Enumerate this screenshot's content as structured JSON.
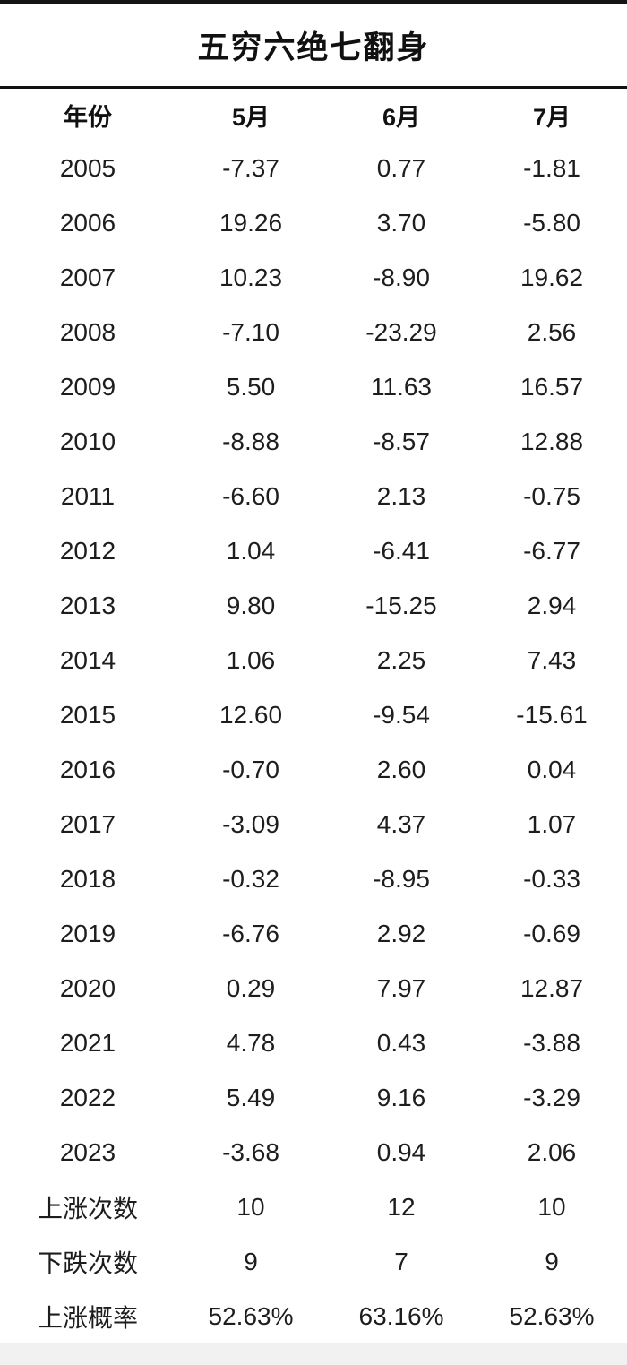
{
  "chart_data": {
    "type": "table",
    "title": "五穷六绝七翻身",
    "columns": [
      "年份",
      "5月",
      "6月",
      "7月"
    ],
    "rows": [
      [
        "2005",
        "-7.37",
        "0.77",
        "-1.81"
      ],
      [
        "2006",
        "19.26",
        "3.70",
        "-5.80"
      ],
      [
        "2007",
        "10.23",
        "-8.90",
        "19.62"
      ],
      [
        "2008",
        "-7.10",
        "-23.29",
        "2.56"
      ],
      [
        "2009",
        "5.50",
        "11.63",
        "16.57"
      ],
      [
        "2010",
        "-8.88",
        "-8.57",
        "12.88"
      ],
      [
        "2011",
        "-6.60",
        "2.13",
        "-0.75"
      ],
      [
        "2012",
        "1.04",
        "-6.41",
        "-6.77"
      ],
      [
        "2013",
        "9.80",
        "-15.25",
        "2.94"
      ],
      [
        "2014",
        "1.06",
        "2.25",
        "7.43"
      ],
      [
        "2015",
        "12.60",
        "-9.54",
        "-15.61"
      ],
      [
        "2016",
        "-0.70",
        "2.60",
        "0.04"
      ],
      [
        "2017",
        "-3.09",
        "4.37",
        "1.07"
      ],
      [
        "2018",
        "-0.32",
        "-8.95",
        "-0.33"
      ],
      [
        "2019",
        "-6.76",
        "2.92",
        "-0.69"
      ],
      [
        "2020",
        "0.29",
        "7.97",
        "12.87"
      ],
      [
        "2021",
        "4.78",
        "0.43",
        "-3.88"
      ],
      [
        "2022",
        "5.49",
        "9.16",
        "-3.29"
      ],
      [
        "2023",
        "-3.68",
        "0.94",
        "2.06"
      ]
    ],
    "summary_rows": [
      [
        "上涨次数",
        "10",
        "12",
        "10"
      ],
      [
        "下跌次数",
        "9",
        "7",
        "9"
      ],
      [
        "上涨概率",
        "52.63%",
        "63.16%",
        "52.63%"
      ]
    ]
  },
  "colors": {
    "text": "#1d1d1d",
    "divider": "#111111",
    "top_bar": "#151515",
    "bottom_strip": "#f1f1f1"
  }
}
